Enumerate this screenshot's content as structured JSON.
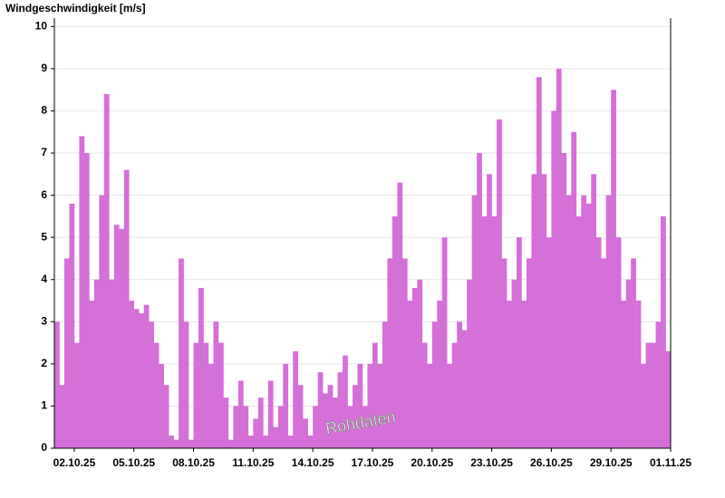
{
  "chart_data": {
    "type": "bar",
    "title": "Windgeschwindigkeit [m/s]",
    "watermark": "Rohdaten",
    "color": "#d56fd8",
    "grid": true,
    "x": [
      0,
      0.25,
      0.5,
      0.75,
      1,
      1.25,
      1.5,
      1.75,
      2,
      2.25,
      2.5,
      2.75,
      3,
      3.25,
      3.5,
      3.75,
      4,
      4.25,
      4.5,
      4.75,
      5,
      5.25,
      5.5,
      5.75,
      6,
      6.25,
      6.5,
      6.75,
      7,
      7.25,
      7.5,
      7.75,
      8,
      8.25,
      8.5,
      8.75,
      9,
      9.25,
      9.5,
      9.75,
      10,
      10.25,
      10.5,
      10.75,
      11,
      11.25,
      11.5,
      11.75,
      12,
      12.25,
      12.5,
      12.75,
      13,
      13.25,
      13.5,
      13.75,
      14,
      14.25,
      14.5,
      14.75,
      15,
      15.25,
      15.5,
      15.75,
      16,
      16.25,
      16.5,
      16.75,
      17,
      17.25,
      17.5,
      17.75,
      18,
      18.25,
      18.5,
      18.75,
      19,
      19.25,
      19.5,
      19.75,
      20,
      20.25,
      20.5,
      20.75,
      21,
      21.25,
      21.5,
      21.75,
      22,
      22.25,
      22.5,
      22.75,
      23,
      23.25,
      23.5,
      23.75,
      24,
      24.25,
      24.5,
      24.75,
      25,
      25.25,
      25.5,
      25.75,
      26,
      26.25,
      26.5,
      26.75,
      27,
      27.25,
      27.5,
      27.75,
      28,
      28.25,
      28.5,
      28.75,
      29,
      29.25,
      29.5,
      29.75,
      30,
      30.25,
      30.5,
      30.75
    ],
    "values": [
      3,
      1.5,
      4.5,
      5.8,
      2.5,
      7.4,
      7,
      3.5,
      4,
      6,
      8.4,
      4,
      5.3,
      5.2,
      6.6,
      3.5,
      3.3,
      3.2,
      3.4,
      3,
      2.5,
      2,
      1.5,
      0.3,
      0.2,
      4.5,
      3,
      0.2,
      2.5,
      3.8,
      2.5,
      2,
      3,
      2.5,
      1.2,
      0.2,
      1,
      1.6,
      1,
      0.3,
      0.7,
      1.2,
      0.3,
      1.6,
      0.5,
      1,
      2,
      0.3,
      2.3,
      1.5,
      0.7,
      0.3,
      1,
      1.8,
      1.3,
      1.5,
      1.2,
      1.8,
      2.2,
      1,
      1.5,
      2,
      1,
      2,
      2.5,
      2,
      3,
      4.5,
      5.5,
      6.3,
      4.5,
      3.5,
      3.8,
      4,
      2.5,
      2,
      3,
      3.5,
      5,
      2,
      2.5,
      3,
      2.8,
      4,
      6,
      7,
      5.5,
      6.5,
      5.5,
      7.8,
      4.5,
      3.5,
      4,
      5,
      3.5,
      4.5,
      6.5,
      8.8,
      6.5,
      5,
      8,
      9,
      7,
      6,
      7.5,
      5.5,
      6,
      5.8,
      6.5,
      5,
      4.5,
      6,
      8.5,
      5,
      3.5,
      4,
      4.5,
      3.5,
      2,
      2.5,
      2.5,
      3,
      5.5,
      2.3
    ],
    "xlim": [
      0,
      31
    ],
    "xticks": [
      {
        "value": 1,
        "label": "02.10.25"
      },
      {
        "value": 4,
        "label": "05.10.25"
      },
      {
        "value": 7,
        "label": "08.10.25"
      },
      {
        "value": 10,
        "label": "11.10.25"
      },
      {
        "value": 13,
        "label": "14.10.25"
      },
      {
        "value": 16,
        "label": "17.10.25"
      },
      {
        "value": 19,
        "label": "20.10.25"
      },
      {
        "value": 22,
        "label": "23.10.25"
      },
      {
        "value": 25,
        "label": "26.10.25"
      },
      {
        "value": 28,
        "label": "29.10.25"
      },
      {
        "value": 31,
        "label": "01.11.25"
      }
    ],
    "ylim": [
      0,
      10.2
    ],
    "yticks": [
      0,
      1,
      2,
      3,
      4,
      5,
      6,
      7,
      8,
      9,
      10
    ]
  }
}
